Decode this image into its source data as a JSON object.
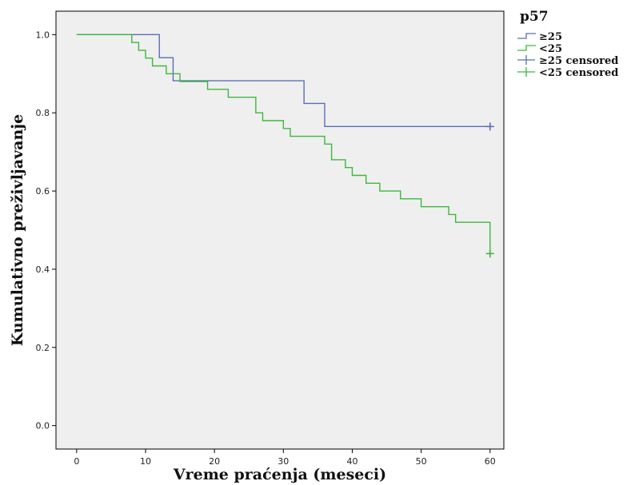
{
  "chart_data": {
    "type": "line",
    "subtype": "kaplan-meier step",
    "xlabel": "Vreme praćenja (meseci)",
    "ylabel": "Kumulativno preživljavanje",
    "xlim": [
      -3,
      62
    ],
    "ylim": [
      -0.06,
      1.06
    ],
    "x_ticks": [
      0,
      10,
      20,
      30,
      40,
      50,
      60
    ],
    "y_ticks": [
      0.0,
      0.2,
      0.4,
      0.6,
      0.8,
      1.0
    ],
    "y_tick_labels": [
      "0.0",
      "0.2",
      "0.4",
      "0.6",
      "0.8",
      "1.0"
    ],
    "grid": false,
    "plot_background": "#efefef",
    "legend": {
      "title": "p57",
      "placement": "right-top",
      "entries": [
        {
          "label": "≥25",
          "kind": "line",
          "color": "#5a6fb4"
        },
        {
          "label": "<25",
          "kind": "line",
          "color": "#3cb83c"
        },
        {
          "label": "≥25 censored",
          "kind": "censor",
          "color": "#5a6fb4"
        },
        {
          "label": "<25 censored",
          "kind": "censor",
          "color": "#3cb83c"
        }
      ]
    },
    "series": [
      {
        "name": "≥25",
        "color": "#5a6fb4",
        "points": [
          [
            0,
            1.0
          ],
          [
            12,
            0.941
          ],
          [
            14,
            0.882
          ],
          [
            33,
            0.824
          ],
          [
            36,
            0.765
          ],
          [
            60,
            0.765
          ]
        ],
        "censored": [
          [
            60,
            0.765
          ]
        ]
      },
      {
        "name": "<25",
        "color": "#3cb83c",
        "points": [
          [
            0,
            1.0
          ],
          [
            8,
            0.98
          ],
          [
            9,
            0.96
          ],
          [
            10,
            0.94
          ],
          [
            11,
            0.92
          ],
          [
            13,
            0.9
          ],
          [
            15,
            0.88
          ],
          [
            19,
            0.86
          ],
          [
            22,
            0.84
          ],
          [
            26,
            0.8
          ],
          [
            27,
            0.78
          ],
          [
            30,
            0.76
          ],
          [
            31,
            0.74
          ],
          [
            36,
            0.72
          ],
          [
            37,
            0.68
          ],
          [
            39,
            0.66
          ],
          [
            40,
            0.64
          ],
          [
            42,
            0.62
          ],
          [
            44,
            0.6
          ],
          [
            47,
            0.58
          ],
          [
            50,
            0.56
          ],
          [
            54,
            0.54
          ],
          [
            55,
            0.52
          ],
          [
            60,
            0.44
          ]
        ],
        "censored": [
          [
            60,
            0.44
          ]
        ]
      }
    ]
  }
}
